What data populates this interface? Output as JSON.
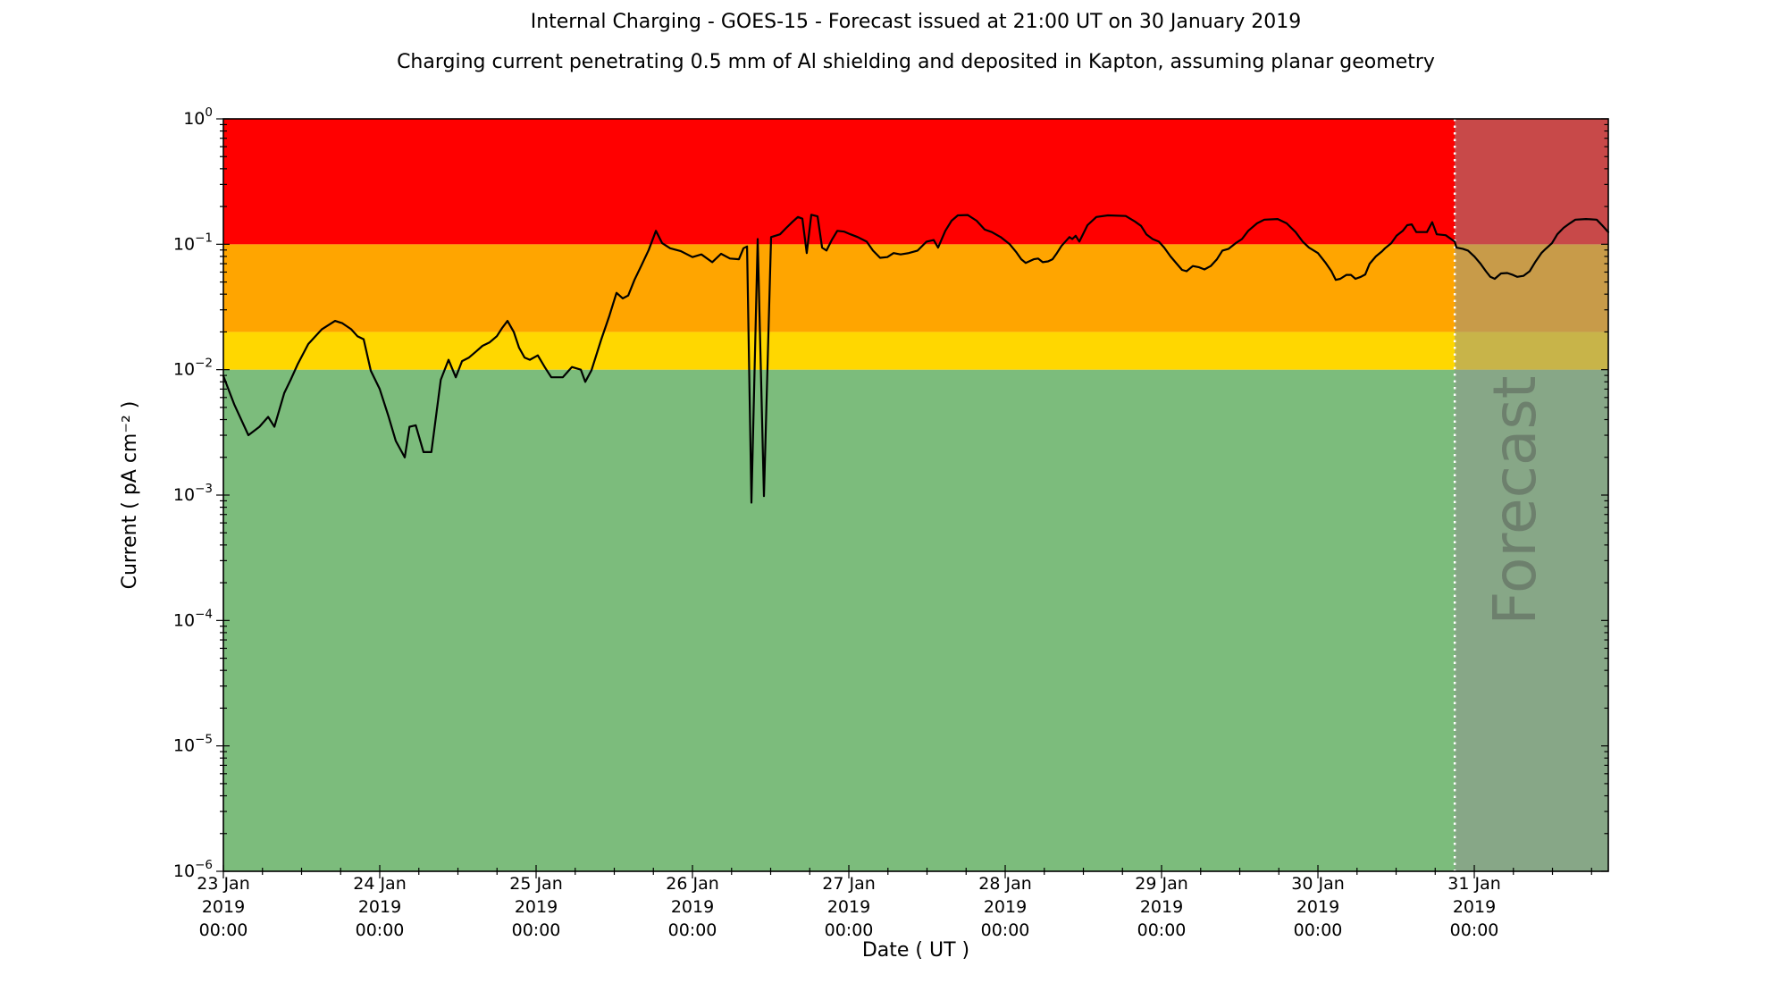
{
  "title": "Internal Charging - GOES-15 - Forecast issued at 21:00 UT on 30 January 2019",
  "subtitle": "Charging current penetrating 0.5 mm of Al shielding and deposited in Kapton, assuming planar geometry",
  "chart_data": {
    "type": "line",
    "title": "Internal Charging - GOES-15 - Forecast issued at 21:00 UT on 30 January 2019",
    "subtitle": "Charging current penetrating 0.5 mm of Al shielding and deposited in Kapton, assuming planar geometry",
    "xlabel": "Date ( UT )",
    "ylabel": "Current ( pA cm⁻² )",
    "y_scale": "log",
    "ylim": [
      1e-06,
      1.0
    ],
    "x_domain_days": [
      0,
      8.857
    ],
    "grid": false,
    "legend": "none",
    "y_ticks": [
      {
        "exp": "0"
      },
      {
        "exp": "−1"
      },
      {
        "exp": "−2"
      },
      {
        "exp": "−3"
      },
      {
        "exp": "−4"
      },
      {
        "exp": "−5"
      },
      {
        "exp": "−6"
      }
    ],
    "x_ticks": [
      {
        "day": 0,
        "date": "23 Jan",
        "year": "2019",
        "time": "00:00"
      },
      {
        "day": 1,
        "date": "24 Jan",
        "year": "2019",
        "time": "00:00"
      },
      {
        "day": 2,
        "date": "25 Jan",
        "year": "2019",
        "time": "00:00"
      },
      {
        "day": 3,
        "date": "26 Jan",
        "year": "2019",
        "time": "00:00"
      },
      {
        "day": 4,
        "date": "27 Jan",
        "year": "2019",
        "time": "00:00"
      },
      {
        "day": 5,
        "date": "28 Jan",
        "year": "2019",
        "time": "00:00"
      },
      {
        "day": 6,
        "date": "29 Jan",
        "year": "2019",
        "time": "00:00"
      },
      {
        "day": 7,
        "date": "30 Jan",
        "year": "2019",
        "time": "00:00"
      },
      {
        "day": 8,
        "date": "31 Jan",
        "year": "2019",
        "time": "00:00"
      }
    ],
    "bands": [
      {
        "name": "green-zone",
        "from": 1e-06,
        "to": 0.01,
        "color": "#7cbc7c"
      },
      {
        "name": "yellow-zone",
        "from": 0.01,
        "to": 0.02,
        "color": "#ffd700"
      },
      {
        "name": "orange-zone",
        "from": 0.02,
        "to": 0.1,
        "color": "#ffa500"
      },
      {
        "name": "red-zone",
        "from": 0.1,
        "to": 1.0,
        "color": "#ff0000"
      }
    ],
    "forecast": {
      "start_day": 7.875,
      "start_label": "30 Jan 2019 21:00 UT",
      "watermark_text": "Forecast",
      "watermark_color": "#4a4a4a",
      "watermark_opacity": 0.42,
      "overlay_color": "#919191",
      "overlay_opacity": 0.5,
      "divider_color": "#ffffff",
      "divider_style": "dotted"
    },
    "series": [
      {
        "name": "charging-current",
        "color": "#000000",
        "units": "pA cm^-2",
        "points": [
          [
            0.0,
            0.0089
          ],
          [
            0.069,
            0.0053
          ],
          [
            0.16,
            0.003
          ],
          [
            0.23,
            0.0035
          ],
          [
            0.286,
            0.0042
          ],
          [
            0.326,
            0.0035
          ],
          [
            0.389,
            0.0065
          ],
          [
            0.43,
            0.0083
          ],
          [
            0.474,
            0.011
          ],
          [
            0.543,
            0.016
          ],
          [
            0.63,
            0.021
          ],
          [
            0.714,
            0.0245
          ],
          [
            0.76,
            0.0235
          ],
          [
            0.817,
            0.021
          ],
          [
            0.857,
            0.0185
          ],
          [
            0.897,
            0.0175
          ],
          [
            0.943,
            0.0098
          ],
          [
            1.0,
            0.007
          ],
          [
            1.057,
            0.0042
          ],
          [
            1.103,
            0.0027
          ],
          [
            1.16,
            0.002
          ],
          [
            1.19,
            0.0035
          ],
          [
            1.23,
            0.0036
          ],
          [
            1.28,
            0.0022
          ],
          [
            1.33,
            0.0022
          ],
          [
            1.39,
            0.0083
          ],
          [
            1.44,
            0.012
          ],
          [
            1.486,
            0.0087
          ],
          [
            1.526,
            0.0117
          ],
          [
            1.571,
            0.0125
          ],
          [
            1.617,
            0.014
          ],
          [
            1.657,
            0.0155
          ],
          [
            1.703,
            0.0165
          ],
          [
            1.749,
            0.0185
          ],
          [
            1.783,
            0.0215
          ],
          [
            1.817,
            0.0245
          ],
          [
            1.857,
            0.02
          ],
          [
            1.891,
            0.015
          ],
          [
            1.926,
            0.0125
          ],
          [
            1.96,
            0.012
          ],
          [
            2.011,
            0.013
          ],
          [
            2.057,
            0.0104
          ],
          [
            2.097,
            0.0087
          ],
          [
            2.171,
            0.0087
          ],
          [
            2.229,
            0.0105
          ],
          [
            2.286,
            0.01
          ],
          [
            2.314,
            0.008
          ],
          [
            2.354,
            0.0099
          ],
          [
            2.417,
            0.0175
          ],
          [
            2.469,
            0.027
          ],
          [
            2.514,
            0.041
          ],
          [
            2.554,
            0.037
          ],
          [
            2.589,
            0.039
          ],
          [
            2.629,
            0.052
          ],
          [
            2.674,
            0.068
          ],
          [
            2.72,
            0.09
          ],
          [
            2.766,
            0.128
          ],
          [
            2.806,
            0.102
          ],
          [
            2.857,
            0.093
          ],
          [
            2.926,
            0.088
          ],
          [
            3.0,
            0.079
          ],
          [
            3.057,
            0.083
          ],
          [
            3.126,
            0.072
          ],
          [
            3.183,
            0.084
          ],
          [
            3.24,
            0.077
          ],
          [
            3.297,
            0.076
          ],
          [
            3.326,
            0.093
          ],
          [
            3.349,
            0.096
          ],
          [
            3.377,
            0.00087
          ],
          [
            3.417,
            0.11
          ],
          [
            3.457,
            0.00098
          ],
          [
            3.503,
            0.114
          ],
          [
            3.56,
            0.12
          ],
          [
            3.6,
            0.135
          ],
          [
            3.64,
            0.151
          ],
          [
            3.674,
            0.165
          ],
          [
            3.703,
            0.16
          ],
          [
            3.731,
            0.085
          ],
          [
            3.76,
            0.172
          ],
          [
            3.8,
            0.167
          ],
          [
            3.829,
            0.094
          ],
          [
            3.857,
            0.089
          ],
          [
            3.891,
            0.108
          ],
          [
            3.926,
            0.128
          ],
          [
            3.971,
            0.126
          ],
          [
            4.011,
            0.12
          ],
          [
            4.057,
            0.114
          ],
          [
            4.114,
            0.105
          ],
          [
            4.154,
            0.089
          ],
          [
            4.2,
            0.078
          ],
          [
            4.246,
            0.079
          ],
          [
            4.286,
            0.085
          ],
          [
            4.331,
            0.083
          ],
          [
            4.383,
            0.085
          ],
          [
            4.44,
            0.089
          ],
          [
            4.497,
            0.105
          ],
          [
            4.543,
            0.108
          ],
          [
            4.571,
            0.094
          ],
          [
            4.617,
            0.128
          ],
          [
            4.657,
            0.154
          ],
          [
            4.697,
            0.17
          ],
          [
            4.76,
            0.171
          ],
          [
            4.817,
            0.154
          ],
          [
            4.869,
            0.131
          ],
          [
            4.914,
            0.125
          ],
          [
            4.971,
            0.114
          ],
          [
            5.029,
            0.1
          ],
          [
            5.069,
            0.087
          ],
          [
            5.103,
            0.076
          ],
          [
            5.131,
            0.071
          ],
          [
            5.183,
            0.076
          ],
          [
            5.211,
            0.077
          ],
          [
            5.24,
            0.072
          ],
          [
            5.274,
            0.073
          ],
          [
            5.303,
            0.076
          ],
          [
            5.331,
            0.085
          ],
          [
            5.36,
            0.097
          ],
          [
            5.411,
            0.114
          ],
          [
            5.429,
            0.11
          ],
          [
            5.451,
            0.117
          ],
          [
            5.474,
            0.105
          ],
          [
            5.526,
            0.142
          ],
          [
            5.583,
            0.165
          ],
          [
            5.657,
            0.17
          ],
          [
            5.771,
            0.168
          ],
          [
            5.829,
            0.152
          ],
          [
            5.869,
            0.14
          ],
          [
            5.903,
            0.12
          ],
          [
            5.943,
            0.11
          ],
          [
            5.983,
            0.105
          ],
          [
            6.017,
            0.094
          ],
          [
            6.057,
            0.08
          ],
          [
            6.097,
            0.07
          ],
          [
            6.131,
            0.0625
          ],
          [
            6.16,
            0.061
          ],
          [
            6.2,
            0.067
          ],
          [
            6.24,
            0.0655
          ],
          [
            6.274,
            0.063
          ],
          [
            6.314,
            0.067
          ],
          [
            6.354,
            0.076
          ],
          [
            6.389,
            0.089
          ],
          [
            6.429,
            0.092
          ],
          [
            6.474,
            0.102
          ],
          [
            6.514,
            0.11
          ],
          [
            6.554,
            0.128
          ],
          [
            6.611,
            0.147
          ],
          [
            6.657,
            0.157
          ],
          [
            6.743,
            0.159
          ],
          [
            6.8,
            0.147
          ],
          [
            6.857,
            0.125
          ],
          [
            6.903,
            0.105
          ],
          [
            6.943,
            0.094
          ],
          [
            7.0,
            0.085
          ],
          [
            7.046,
            0.072
          ],
          [
            7.086,
            0.061
          ],
          [
            7.114,
            0.052
          ],
          [
            7.143,
            0.053
          ],
          [
            7.183,
            0.057
          ],
          [
            7.211,
            0.057
          ],
          [
            7.24,
            0.053
          ],
          [
            7.274,
            0.055
          ],
          [
            7.303,
            0.0575
          ],
          [
            7.331,
            0.07
          ],
          [
            7.371,
            0.08
          ],
          [
            7.411,
            0.088
          ],
          [
            7.429,
            0.093
          ],
          [
            7.469,
            0.102
          ],
          [
            7.503,
            0.117
          ],
          [
            7.543,
            0.128
          ],
          [
            7.571,
            0.142
          ],
          [
            7.6,
            0.144
          ],
          [
            7.629,
            0.125
          ],
          [
            7.697,
            0.125
          ],
          [
            7.731,
            0.15
          ],
          [
            7.76,
            0.12
          ],
          [
            7.817,
            0.118
          ],
          [
            7.875,
            0.105
          ],
          [
            7.886,
            0.094
          ],
          [
            7.926,
            0.092
          ],
          [
            7.96,
            0.089
          ],
          [
            8.0,
            0.08
          ],
          [
            8.04,
            0.07
          ],
          [
            8.074,
            0.061
          ],
          [
            8.103,
            0.055
          ],
          [
            8.131,
            0.053
          ],
          [
            8.171,
            0.0585
          ],
          [
            8.211,
            0.059
          ],
          [
            8.246,
            0.057
          ],
          [
            8.274,
            0.055
          ],
          [
            8.314,
            0.056
          ],
          [
            8.354,
            0.061
          ],
          [
            8.389,
            0.072
          ],
          [
            8.429,
            0.085
          ],
          [
            8.457,
            0.092
          ],
          [
            8.497,
            0.102
          ],
          [
            8.531,
            0.12
          ],
          [
            8.571,
            0.135
          ],
          [
            8.611,
            0.147
          ],
          [
            8.646,
            0.157
          ],
          [
            8.714,
            0.159
          ],
          [
            8.783,
            0.157
          ],
          [
            8.817,
            0.142
          ],
          [
            8.857,
            0.125
          ]
        ]
      }
    ]
  }
}
